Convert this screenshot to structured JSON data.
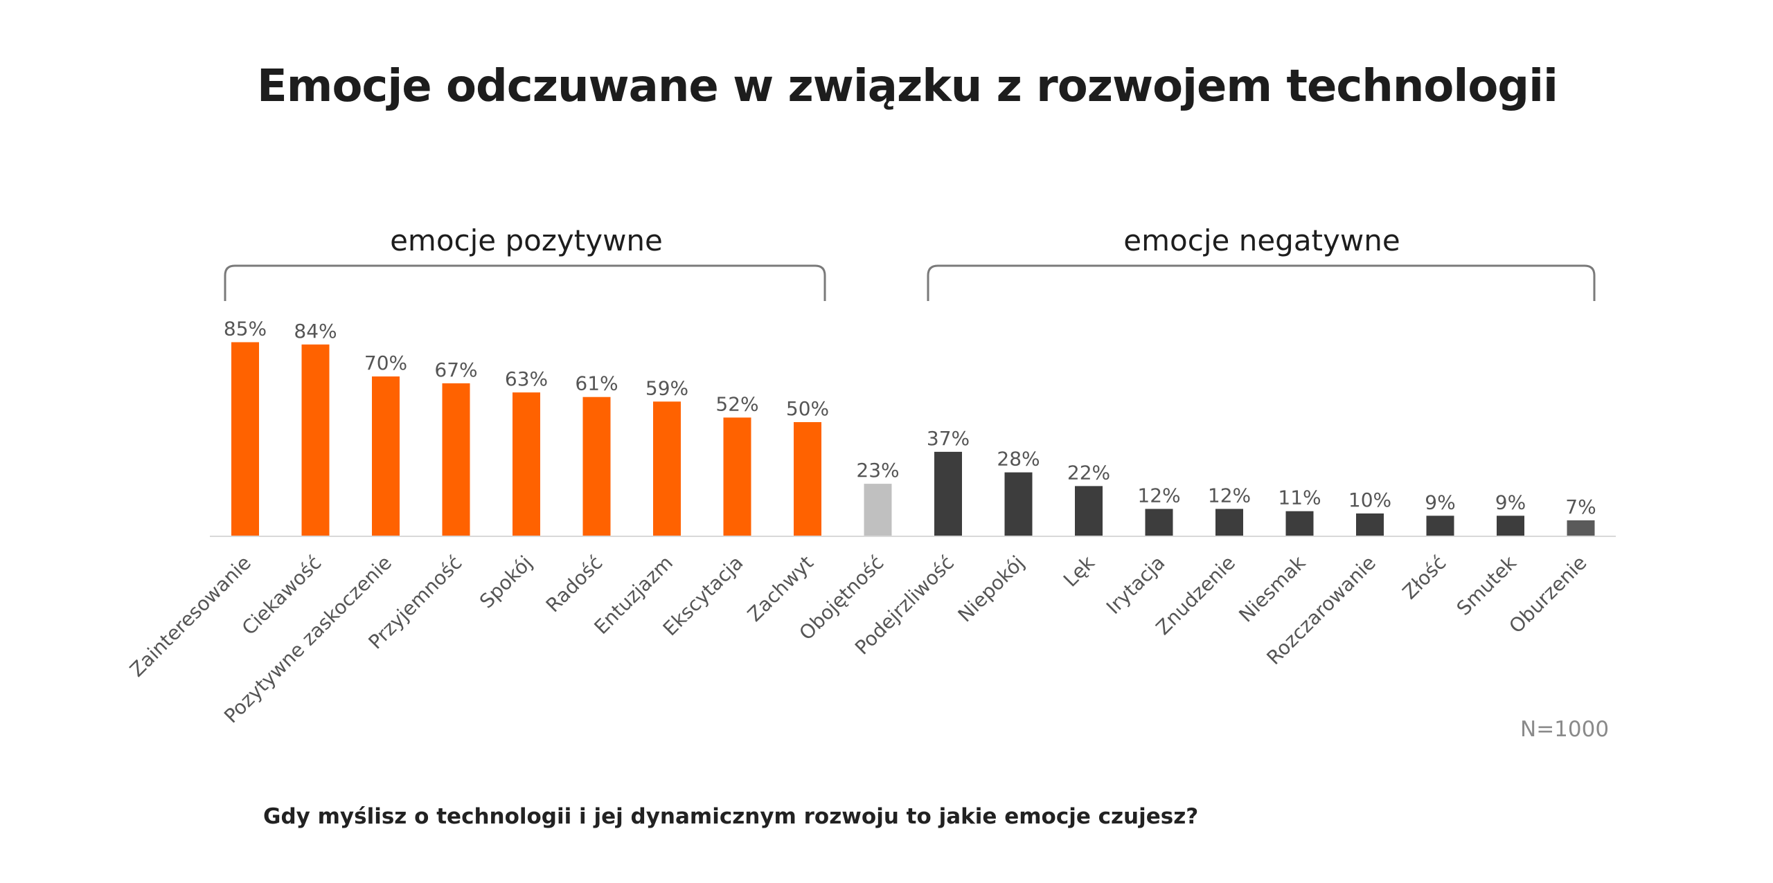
{
  "title": "Emocje odczuwane w związku z rozwojem technologii",
  "question": "Gdy myślisz o technologii i jej dynamicznym rozwoju to jakie emocje czujesz?",
  "sample_size": "N=1000",
  "group_labels": {
    "positive": "emocje pozytywne",
    "negative": "emocje negatywne"
  },
  "colors": {
    "positive": "#ff6200",
    "neutral": "#c0c0c0",
    "negative": "#3d3d3d",
    "last": "#5a5a5a",
    "bracket": "#7a7a7a",
    "axis": "#d8d8d8",
    "label": "#555555"
  },
  "chart_data": {
    "type": "bar",
    "title": "Emocje odczuwane w związku z rozwojem technologii",
    "ylim": [
      0,
      100
    ],
    "grid": false,
    "categories": [
      "Zainteresowanie",
      "Ciekawość",
      "Pozytywne zaskoczenie",
      "Przyjemność",
      "Spokój",
      "Radość",
      "Entuzjazm",
      "Ekscytacja",
      "Zachwyt",
      "Obojętność",
      "Podejrzliwość",
      "Niepokój",
      "Lęk",
      "Irytacja",
      "Znudzenie",
      "Niesmak",
      "Rozczarowanie",
      "Złość",
      "Smutek",
      "Oburzenie"
    ],
    "values": [
      85,
      84,
      70,
      67,
      63,
      61,
      59,
      52,
      50,
      23,
      37,
      28,
      22,
      12,
      12,
      11,
      10,
      9,
      9,
      7
    ],
    "value_labels": [
      "85%",
      "84%",
      "70%",
      "67%",
      "63%",
      "61%",
      "59%",
      "52%",
      "50%",
      "23%",
      "37%",
      "28%",
      "22%",
      "12%",
      "12%",
      "11%",
      "10%",
      "9%",
      "9%",
      "7%"
    ],
    "groups": [
      "positive",
      "positive",
      "positive",
      "positive",
      "positive",
      "positive",
      "positive",
      "positive",
      "positive",
      "neutral",
      "negative",
      "negative",
      "negative",
      "negative",
      "negative",
      "negative",
      "negative",
      "negative",
      "negative",
      "last"
    ]
  }
}
